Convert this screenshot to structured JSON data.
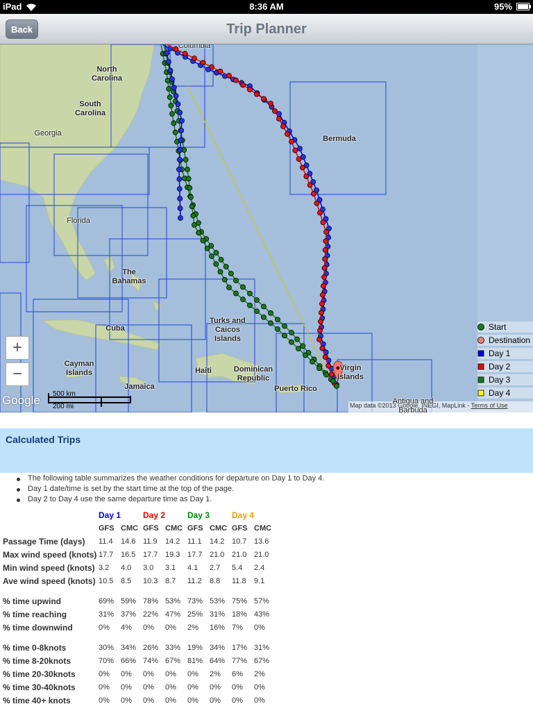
{
  "status_bar": {
    "carrier": "iPad",
    "time": "8:36 AM",
    "battery": "95%"
  },
  "nav_bar": {
    "back": "Back",
    "title": "Trip Planner"
  },
  "map": {
    "labels": [
      "Columbia",
      "North Carolina",
      "South Carolina",
      "Georgia",
      "Florida",
      "The Bahamas",
      "Cuba",
      "Cayman Islands",
      "Jamaica",
      "Haiti",
      "Dominican Republic",
      "Turks and Caicos Islands",
      "Puerto Rico",
      "Bermuda",
      "Virgin Islands",
      "Antigua and Barbuda"
    ],
    "zoom_in": "+",
    "zoom_out": "−",
    "scale_km": "500 km",
    "scale_mi": "200 mi",
    "logo": "Google",
    "attribution": "Map data ©2013 Google, INEGI, MapLink - ",
    "terms": "Terms of Use",
    "legend": [
      {
        "label": "Start",
        "color": "#1a7a1a",
        "shape": "circle"
      },
      {
        "label": "Destination",
        "color": "#f08070",
        "shape": "circle"
      },
      {
        "label": "Day 1",
        "color": "#0000ee",
        "shape": "square"
      },
      {
        "label": "Day 2",
        "color": "#ee0000",
        "shape": "square"
      },
      {
        "label": "Day 3",
        "color": "#1a7a1a",
        "shape": "square"
      },
      {
        "label": "Day 4",
        "color": "#ffff00",
        "shape": "square"
      }
    ]
  },
  "section": {
    "title": "Calculated Trips"
  },
  "notes": [
    "The following table summarizes the weather conditions for departure on Day 1 to Day 4.",
    "Day 1 date/time is set by the start time at the top of the page.",
    "Day 2 to Day 4 use the same departure time as Day 1."
  ],
  "table": {
    "days": [
      {
        "label": "Day 1",
        "color": "#0000ee"
      },
      {
        "label": "Day 2",
        "color": "#ee0000"
      },
      {
        "label": "Day 3",
        "color": "#008800"
      },
      {
        "label": "Day 4",
        "color": "#f0a000"
      }
    ],
    "models": [
      "GFS",
      "CMC",
      "GFS",
      "CMC",
      "GFS",
      "CMC",
      "GFS",
      "CMC"
    ],
    "groups": [
      [
        {
          "label": "Passage Time (days)",
          "cells": [
            "11.4",
            "14.6",
            "11.9",
            "14.2",
            "11.1",
            "14.2",
            "10.7",
            "13.6"
          ]
        },
        {
          "label": "Max wind speed (knots)",
          "cells": [
            "17.7",
            "16.5",
            "17.7",
            "19.3",
            "17.7",
            "21.0",
            "21.0",
            "21.0"
          ]
        },
        {
          "label": "Min wind speed (knots)",
          "cells": [
            "3.2",
            "4.0",
            "3.0",
            "3.1",
            "4.1",
            "2.7",
            "5.4",
            "2.4"
          ]
        },
        {
          "label": "Ave wind speed (knots)",
          "cells": [
            "10.5",
            "8.5",
            "10.3",
            "8.7",
            "11.2",
            "8.8",
            "11.8",
            "9.1"
          ]
        }
      ],
      [
        {
          "label": "% time upwind",
          "cells": [
            "69%",
            "59%",
            "78%",
            "53%",
            "73%",
            "53%",
            "75%",
            "57%"
          ]
        },
        {
          "label": "% time reaching",
          "cells": [
            "31%",
            "37%",
            "22%",
            "47%",
            "25%",
            "31%",
            "18%",
            "43%"
          ]
        },
        {
          "label": "% time downwind",
          "cells": [
            "0%",
            "4%",
            "0%",
            "0%",
            "2%",
            "16%",
            "7%",
            "0%"
          ]
        }
      ],
      [
        {
          "label": "% time 0-8knots",
          "cells": [
            "30%",
            "34%",
            "26%",
            "33%",
            "19%",
            "34%",
            "17%",
            "31%"
          ]
        },
        {
          "label": "% time 8-20knots",
          "cells": [
            "70%",
            "66%",
            "74%",
            "67%",
            "81%",
            "64%",
            "77%",
            "67%"
          ]
        },
        {
          "label": "% time 20-30knots",
          "cells": [
            "0%",
            "0%",
            "0%",
            "0%",
            "0%",
            "2%",
            "6%",
            "2%"
          ]
        },
        {
          "label": "% time 30-40knots",
          "cells": [
            "0%",
            "0%",
            "0%",
            "0%",
            "0%",
            "0%",
            "0%",
            "0%"
          ]
        },
        {
          "label": "% time 40+ knots",
          "cells": [
            "0%",
            "0%",
            "0%",
            "0%",
            "0%",
            "0%",
            "0%",
            "0%"
          ]
        }
      ]
    ]
  }
}
